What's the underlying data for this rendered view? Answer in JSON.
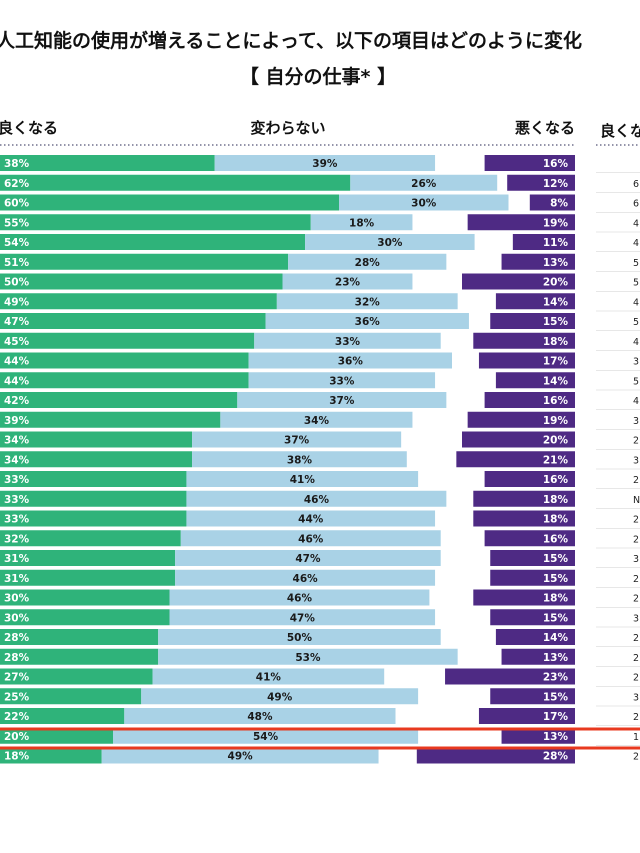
{
  "title_line1": "人工知能の使用が増えることによって、以下の項目はどのように変化",
  "title_line2": "【 自分の仕事* 】",
  "headers": {
    "better": "良くなる",
    "same": "変わらない",
    "worse": "悪くなる",
    "side": "良くな"
  },
  "colors": {
    "better": "#2fb37a",
    "same": "#a9d2e6",
    "worse": "#4e2a84",
    "highlight": "#e8391f",
    "dots": "#555577"
  },
  "chart_data": {
    "type": "bar",
    "stacked": true,
    "orientation": "horizontal",
    "title": "人工知能の使用が増えることによって、以下の項目はどのように変化 【 自分の仕事* 】",
    "series": [
      {
        "name": "良くなる",
        "values": [
          38,
          62,
          60,
          55,
          54,
          51,
          50,
          49,
          47,
          45,
          44,
          44,
          42,
          39,
          34,
          34,
          33,
          33,
          33,
          32,
          31,
          31,
          30,
          30,
          28,
          28,
          27,
          25,
          22,
          20,
          18
        ]
      },
      {
        "name": "変わらない",
        "values": [
          39,
          26,
          30,
          18,
          30,
          28,
          23,
          32,
          36,
          33,
          36,
          33,
          37,
          34,
          37,
          38,
          41,
          46,
          44,
          46,
          47,
          46,
          46,
          47,
          50,
          53,
          41,
          49,
          48,
          54,
          49
        ]
      },
      {
        "name": "悪くなる",
        "values": [
          16,
          12,
          8,
          19,
          11,
          13,
          20,
          14,
          15,
          18,
          17,
          14,
          16,
          19,
          20,
          21,
          16,
          18,
          18,
          16,
          15,
          15,
          18,
          15,
          14,
          13,
          23,
          15,
          17,
          13,
          28
        ]
      }
    ],
    "highlighted_row_index": 29,
    "side_column_partial": [
      "",
      "6",
      "6",
      "4",
      "4",
      "5",
      "5",
      "4",
      "5",
      "4",
      "3",
      "5",
      "4",
      "3",
      "2",
      "3",
      "2",
      "N",
      "2",
      "2",
      "3",
      "2",
      "2",
      "3",
      "2",
      "2",
      "2",
      "3",
      "2",
      "1",
      "2"
    ]
  }
}
